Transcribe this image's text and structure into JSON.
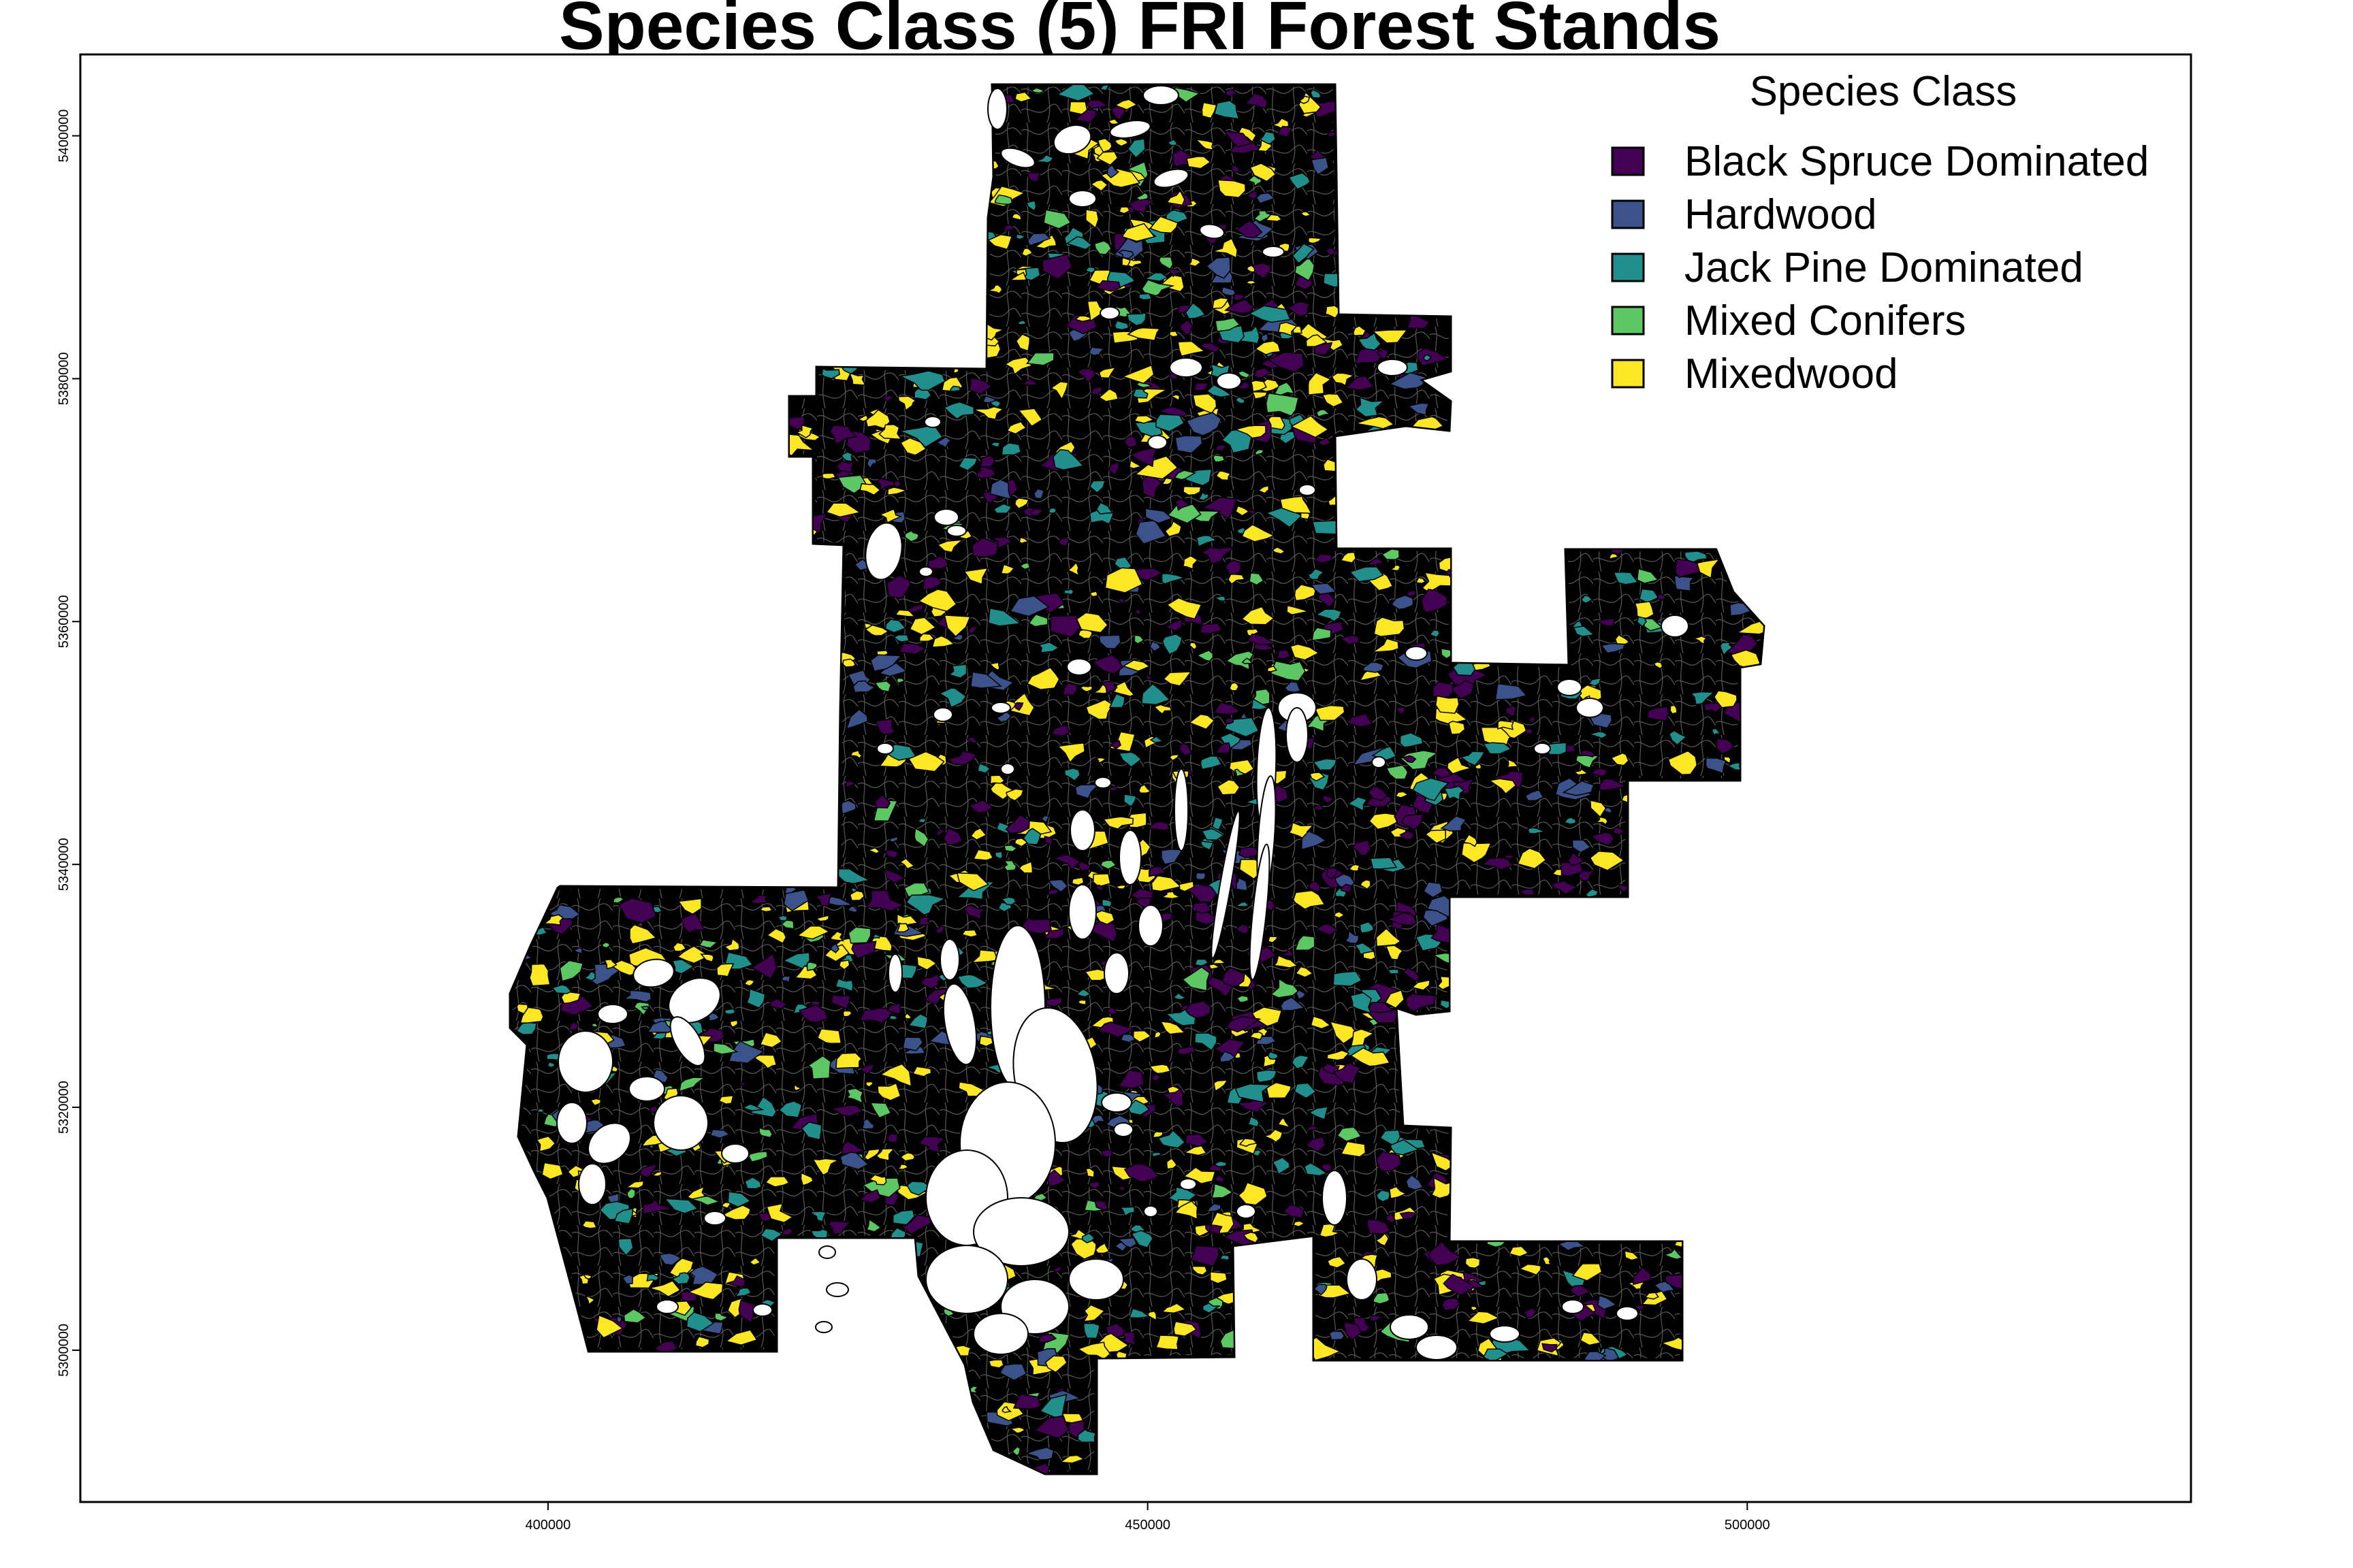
{
  "title": "Species Class (5) FRI Forest Stands",
  "x_axis": {
    "ticks": [
      {
        "value": 400000,
        "label": "400000"
      },
      {
        "value": 450000,
        "label": "450000"
      },
      {
        "value": 500000,
        "label": "500000"
      }
    ],
    "range": [
      361000,
      537000
    ]
  },
  "y_axis": {
    "ticks": [
      {
        "value": 5300000,
        "label": "5300000"
      },
      {
        "value": 5320000,
        "label": "5320000"
      },
      {
        "value": 5340000,
        "label": "5340000"
      },
      {
        "value": 5360000,
        "label": "5360000"
      },
      {
        "value": 5380000,
        "label": "5380000"
      },
      {
        "value": 5400000,
        "label": "5400000"
      }
    ],
    "range": [
      5287500,
      5406700
    ]
  },
  "legend": {
    "title": "Species Class",
    "placement": "top-right",
    "items": [
      {
        "label": "Black Spruce Dominated",
        "color": "#440154"
      },
      {
        "label": "Hardwood",
        "color": "#3B528B"
      },
      {
        "label": "Jack Pine Dominated",
        "color": "#21908C"
      },
      {
        "label": "Mixed Conifers",
        "color": "#5DC863"
      },
      {
        "label": "Mixedwood",
        "color": "#FDE725"
      }
    ]
  },
  "map": {
    "outline_color": "#000000",
    "background_color": "#ffffff"
  }
}
